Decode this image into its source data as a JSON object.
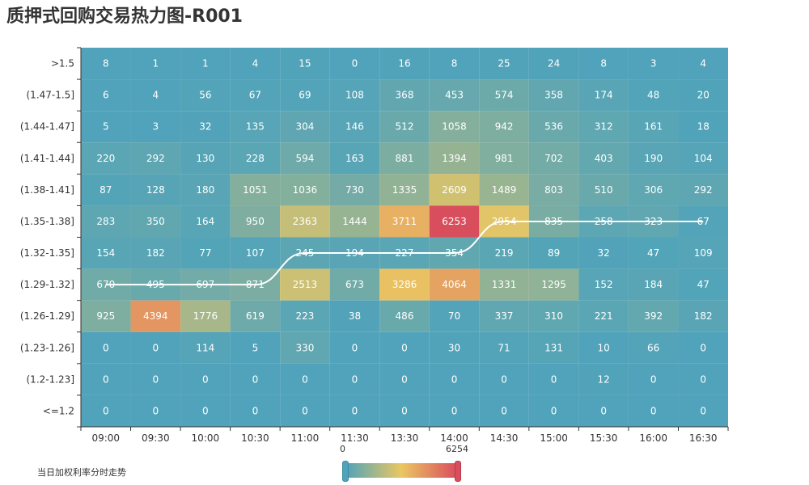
{
  "title": "质押式回购交易热力图-R001",
  "legend": {
    "line_label": "当日加权利率分时走势"
  },
  "visual_map": {
    "min_label": "0",
    "max_label": "6254",
    "min": 0,
    "max": 6254,
    "colors": [
      "#50a3ba",
      "#eac763",
      "#d94e5d"
    ]
  },
  "chart_data": {
    "type": "heatmap",
    "title": "质押式回购交易热力图-R001",
    "x_categories": [
      "09:00",
      "09:30",
      "10:00",
      "10:30",
      "11:00",
      "11:30",
      "13:30",
      "14:00",
      "14:30",
      "15:00",
      "15:30",
      "16:00",
      "16:30"
    ],
    "y_categories": [
      ">1.5",
      "(1.47-1.5]",
      "(1.44-1.47]",
      "(1.41-1.44]",
      "(1.38-1.41]",
      "(1.35-1.38]",
      "(1.32-1.35]",
      "(1.29-1.32]",
      "(1.26-1.29]",
      "(1.23-1.26]",
      "(1.2-1.23]",
      "<=1.2"
    ],
    "values": [
      [
        8,
        1,
        1,
        4,
        15,
        0,
        16,
        8,
        25,
        24,
        8,
        3,
        4
      ],
      [
        6,
        4,
        56,
        67,
        69,
        108,
        368,
        453,
        574,
        358,
        174,
        48,
        20
      ],
      [
        5,
        3,
        32,
        135,
        304,
        146,
        512,
        1058,
        942,
        536,
        312,
        161,
        18
      ],
      [
        220,
        292,
        130,
        228,
        594,
        163,
        881,
        1394,
        981,
        702,
        403,
        190,
        104
      ],
      [
        87,
        128,
        180,
        1051,
        1036,
        730,
        1335,
        2609,
        1489,
        803,
        510,
        306,
        292
      ],
      [
        283,
        350,
        164,
        950,
        2363,
        1444,
        3711,
        6253,
        2954,
        835,
        258,
        323,
        67
      ],
      [
        154,
        182,
        77,
        107,
        245,
        194,
        227,
        354,
        219,
        89,
        32,
        47,
        109
      ],
      [
        670,
        495,
        697,
        871,
        2513,
        673,
        3286,
        4064,
        1331,
        1295,
        152,
        184,
        47
      ],
      [
        925,
        4394,
        1776,
        619,
        223,
        38,
        486,
        70,
        337,
        310,
        221,
        392,
        182
      ],
      [
        0,
        0,
        114,
        5,
        330,
        0,
        0,
        30,
        71,
        131,
        10,
        66,
        0
      ],
      [
        0,
        0,
        0,
        0,
        0,
        0,
        0,
        0,
        0,
        0,
        12,
        0,
        0
      ],
      [
        0,
        0,
        0,
        0,
        0,
        0,
        0,
        0,
        0,
        0,
        0,
        0,
        0
      ]
    ],
    "weighted_rate_line": {
      "name": "当日加权利率分时走势",
      "row_index": [
        7,
        7,
        7,
        7,
        6,
        6,
        6,
        6,
        5,
        5,
        5,
        5,
        5
      ]
    }
  }
}
